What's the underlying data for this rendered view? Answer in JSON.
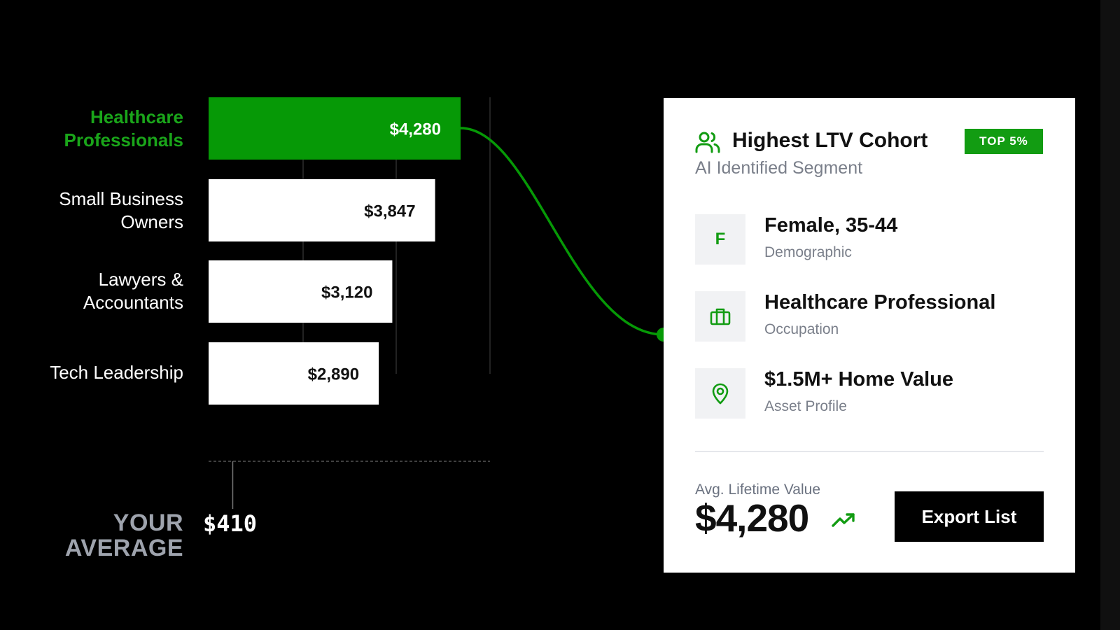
{
  "chart_data": {
    "type": "bar",
    "orientation": "horizontal",
    "categories": [
      "Healthcare\nProfessionals",
      "Small Business\nOwners",
      "Lawyers &\nAccountants",
      "Tech Leadership"
    ],
    "values": [
      4280,
      3847,
      3120,
      2890
    ],
    "value_labels": [
      "$4,280",
      "$3,847",
      "$3,120",
      "$2,890"
    ],
    "highlighted_index": 0,
    "colors": {
      "highlight": "#069906",
      "bar": "#ffffff",
      "highlight_text": "#1aa51a"
    },
    "reference_line": {
      "label": "YOUR\nAVERAGE",
      "value": 410,
      "value_label": "$410"
    }
  },
  "card": {
    "title": "Highest LTV Cohort",
    "subtitle": "AI Identified Segment",
    "badge": "TOP 5%",
    "title_icon": "users-icon",
    "attributes": [
      {
        "icon": "F",
        "title": "Female, 35-44",
        "label": "Demographic"
      },
      {
        "icon": "briefcase-icon",
        "title": "Healthcare Professional",
        "label": "Occupation"
      },
      {
        "icon": "map-pin-icon",
        "title": "$1.5M+ Home Value",
        "label": "Asset Profile"
      }
    ],
    "ltv_label": "Avg. Lifetime Value",
    "ltv_value": "$4,280",
    "trend_icon": "trending-up-icon",
    "export_label": "Export List",
    "accent": "#129c12"
  }
}
